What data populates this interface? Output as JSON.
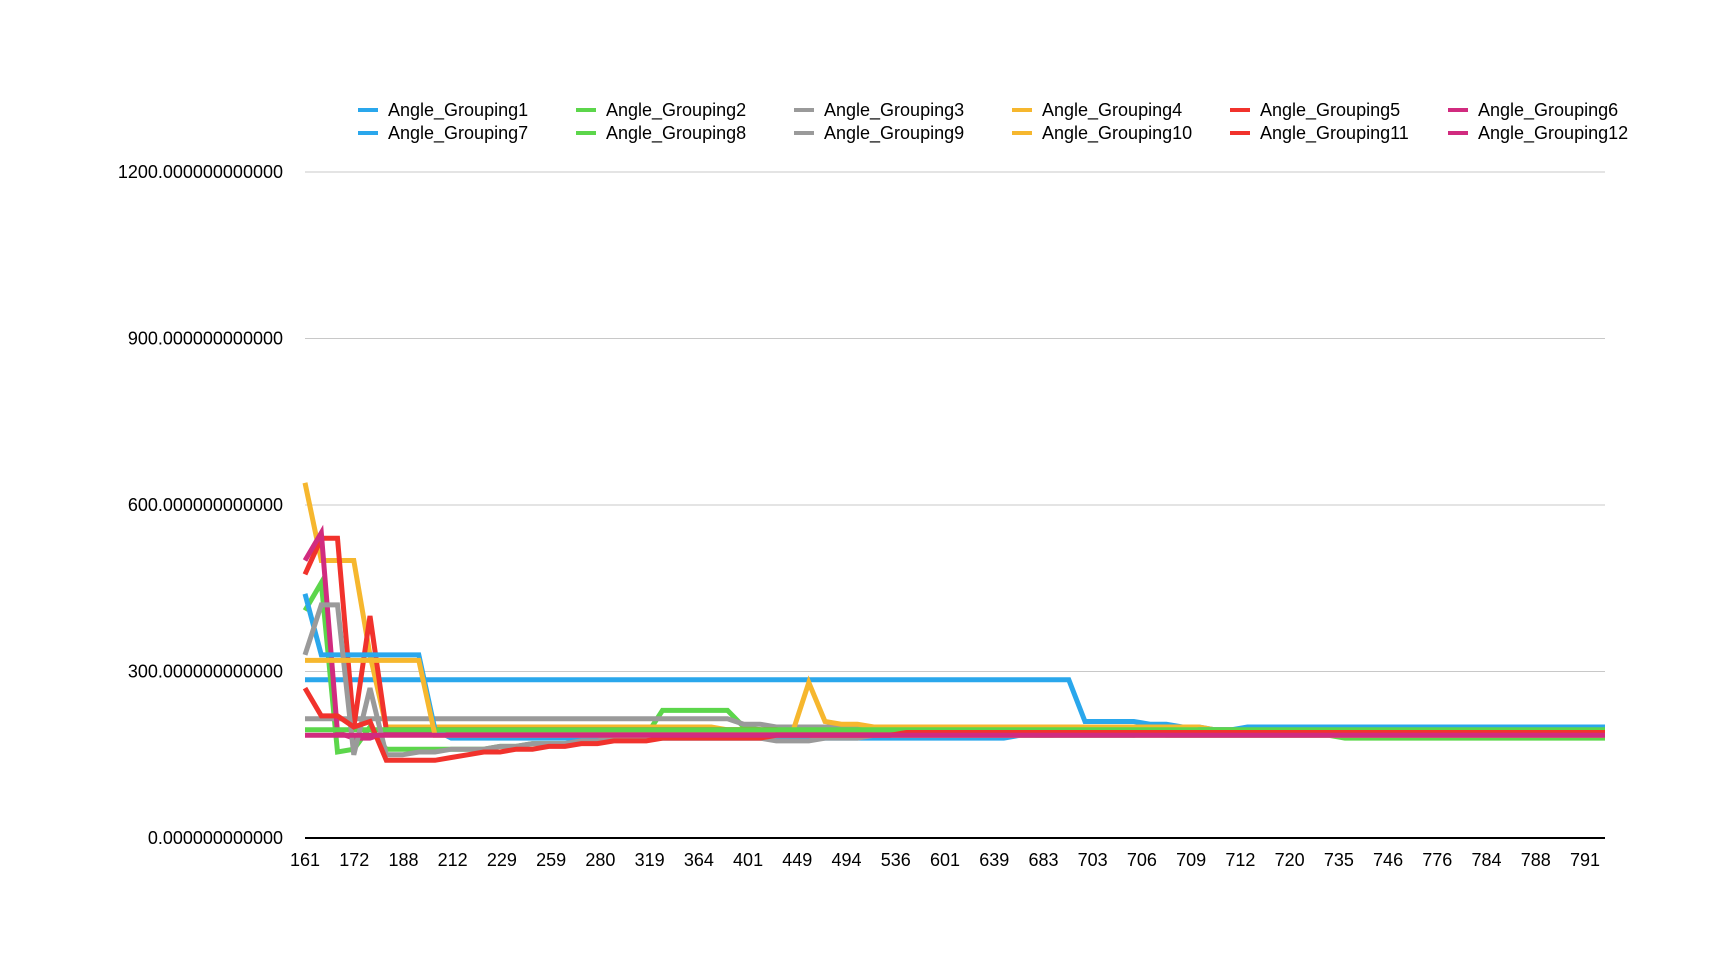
{
  "chart_data": {
    "type": "line",
    "title": "",
    "xlabel": "",
    "ylabel": "",
    "ylim": [
      0,
      1200
    ],
    "y_ticks": [
      0,
      300,
      600,
      900,
      1200
    ],
    "y_tick_labels": [
      "0.000000000000",
      "300.000000000000",
      "600.000000000000",
      "900.000000000000",
      "1200.000000000000"
    ],
    "grid": true,
    "legend": "top",
    "x_tick_labels": [
      "161",
      "172",
      "188",
      "212",
      "229",
      "259",
      "280",
      "319",
      "364",
      "401",
      "449",
      "494",
      "536",
      "601",
      "639",
      "683",
      "703",
      "706",
      "709",
      "712",
      "720",
      "735",
      "746",
      "776",
      "784",
      "788",
      "791"
    ],
    "n_points": 81,
    "series": [
      {
        "name": "Angle_Grouping1",
        "color": "#2aa7ec",
        "values": [
          285,
          285,
          285,
          285,
          285,
          285,
          285,
          285,
          285,
          285,
          285,
          285,
          285,
          285,
          285,
          285,
          285,
          285,
          285,
          285,
          285,
          285,
          285,
          285,
          285,
          285,
          285,
          285,
          285,
          285,
          285,
          285,
          285,
          285,
          285,
          285,
          285,
          285,
          285,
          285,
          285,
          285,
          285,
          285,
          285,
          285,
          285,
          285,
          210,
          210,
          210,
          210,
          205,
          205,
          200,
          200,
          195,
          195,
          195,
          190,
          190,
          190,
          190,
          190,
          190,
          190,
          190,
          190,
          185,
          185,
          185,
          185,
          185,
          185,
          185,
          185,
          185,
          185,
          185,
          185,
          185
        ]
      },
      {
        "name": "Angle_Grouping2",
        "color": "#5cd64b",
        "values": [
          410,
          460,
          155,
          160,
          200,
          160,
          160,
          160,
          160,
          160,
          160,
          160,
          165,
          165,
          170,
          170,
          170,
          175,
          175,
          180,
          180,
          185,
          230,
          230,
          230,
          230,
          230,
          200,
          195,
          190,
          190,
          190,
          190,
          190,
          190,
          190,
          190,
          190,
          185,
          190,
          190,
          190,
          190,
          185,
          190,
          185,
          185,
          190,
          190,
          190,
          190,
          185,
          190,
          185,
          185,
          185,
          185,
          185,
          185,
          185,
          185,
          185,
          185,
          185,
          180,
          180,
          180,
          180,
          180,
          180,
          180,
          180,
          180,
          180,
          180,
          180,
          180,
          180,
          180,
          180,
          180
        ]
      },
      {
        "name": "Angle_Grouping3",
        "color": "#9a9a9a",
        "values": [
          215,
          215,
          215,
          215,
          215,
          215,
          215,
          215,
          215,
          215,
          215,
          215,
          215,
          215,
          215,
          215,
          215,
          215,
          215,
          215,
          215,
          215,
          215,
          215,
          215,
          215,
          215,
          205,
          205,
          200,
          200,
          200,
          200,
          200,
          200,
          200,
          200,
          200,
          200,
          200,
          200,
          200,
          200,
          200,
          200,
          200,
          200,
          200,
          200,
          200,
          200,
          200,
          200,
          195,
          195,
          195,
          195,
          195,
          195,
          195,
          195,
          195,
          195,
          195,
          190,
          190,
          190,
          190,
          190,
          190,
          190,
          190,
          190,
          190,
          190,
          190,
          190,
          190,
          190,
          190,
          190
        ]
      },
      {
        "name": "Angle_Grouping4",
        "color": "#f6b72e",
        "values": [
          640,
          500,
          500,
          500,
          330,
          200,
          200,
          200,
          200,
          200,
          200,
          200,
          200,
          200,
          200,
          200,
          200,
          200,
          200,
          200,
          200,
          200,
          200,
          200,
          200,
          200,
          195,
          195,
          195,
          190,
          190,
          280,
          210,
          205,
          205,
          200,
          200,
          200,
          200,
          200,
          200,
          200,
          200,
          200,
          200,
          200,
          200,
          200,
          200,
          200,
          200,
          200,
          200,
          200,
          200,
          200,
          195,
          195,
          195,
          195,
          195,
          195,
          190,
          190,
          190,
          190,
          190,
          190,
          190,
          190,
          190,
          190,
          190,
          190,
          190,
          190,
          190,
          190,
          190,
          190,
          190
        ]
      },
      {
        "name": "Angle_Grouping5",
        "color": "#f1322c",
        "values": [
          475,
          540,
          540,
          200,
          400,
          195,
          195,
          195,
          195,
          195,
          195,
          195,
          195,
          195,
          195,
          195,
          195,
          195,
          195,
          195,
          195,
          195,
          195,
          195,
          195,
          195,
          195,
          195,
          195,
          195,
          190,
          190,
          190,
          190,
          190,
          190,
          190,
          190,
          190,
          190,
          190,
          190,
          190,
          190,
          190,
          190,
          190,
          190,
          190,
          190,
          190,
          190,
          190,
          190,
          190,
          190,
          190,
          190,
          190,
          190,
          190,
          190,
          190,
          190,
          190,
          190,
          190,
          190,
          190,
          190,
          190,
          190,
          190,
          190,
          190,
          190,
          190,
          190,
          190,
          190,
          190
        ]
      },
      {
        "name": "Angle_Grouping6",
        "color": "#d12b7f",
        "values": [
          500,
          550,
          190,
          180,
          180,
          190,
          190,
          190,
          190,
          190,
          190,
          190,
          190,
          190,
          190,
          190,
          190,
          190,
          190,
          190,
          190,
          190,
          190,
          190,
          190,
          190,
          190,
          190,
          190,
          190,
          190,
          190,
          190,
          190,
          190,
          190,
          190,
          190,
          190,
          190,
          190,
          190,
          190,
          190,
          190,
          190,
          190,
          190,
          190,
          190,
          190,
          190,
          190,
          190,
          190,
          190,
          190,
          190,
          190,
          190,
          190,
          190,
          190,
          190,
          190,
          190,
          190,
          190,
          190,
          190,
          190,
          190,
          190,
          190,
          190,
          190,
          190,
          190,
          190,
          190,
          190
        ]
      },
      {
        "name": "Angle_Grouping7",
        "color": "#2aa7ec",
        "values": [
          440,
          330,
          330,
          330,
          330,
          330,
          330,
          330,
          195,
          180,
          180,
          180,
          180,
          180,
          180,
          180,
          180,
          180,
          180,
          180,
          180,
          180,
          180,
          180,
          180,
          180,
          180,
          180,
          180,
          180,
          180,
          180,
          180,
          180,
          180,
          180,
          180,
          180,
          180,
          180,
          180,
          180,
          180,
          180,
          185,
          185,
          185,
          185,
          185,
          185,
          185,
          185,
          190,
          190,
          190,
          195,
          195,
          195,
          200,
          200,
          200,
          200,
          200,
          200,
          200,
          200,
          200,
          200,
          200,
          200,
          200,
          200,
          200,
          200,
          200,
          200,
          200,
          200,
          200,
          200,
          200
        ]
      },
      {
        "name": "Angle_Grouping8",
        "color": "#5cd64b",
        "values": [
          195,
          195,
          195,
          195,
          195,
          195,
          195,
          195,
          195,
          195,
          195,
          195,
          195,
          195,
          195,
          195,
          195,
          195,
          195,
          195,
          195,
          195,
          195,
          195,
          195,
          195,
          195,
          195,
          195,
          195,
          195,
          195,
          195,
          195,
          195,
          195,
          195,
          195,
          195,
          195,
          195,
          195,
          195,
          195,
          195,
          195,
          195,
          195,
          195,
          195,
          195,
          195,
          195,
          195,
          195,
          195,
          195,
          195,
          195,
          195,
          195,
          195,
          195,
          195,
          195,
          195,
          195,
          195,
          195,
          195,
          195,
          195,
          195,
          195,
          195,
          195,
          195,
          195,
          195,
          195,
          195
        ]
      },
      {
        "name": "Angle_Grouping9",
        "color": "#9a9a9a",
        "values": [
          330,
          420,
          420,
          150,
          270,
          150,
          150,
          155,
          155,
          160,
          160,
          160,
          165,
          165,
          170,
          170,
          170,
          175,
          175,
          180,
          180,
          180,
          180,
          180,
          180,
          180,
          180,
          180,
          180,
          175,
          175,
          175,
          180,
          180,
          180,
          185,
          185,
          185,
          185,
          185,
          185,
          185,
          185,
          185,
          185,
          185,
          185,
          185,
          185,
          185,
          185,
          185,
          185,
          185,
          185,
          185,
          185,
          185,
          185,
          185,
          185,
          185,
          185,
          185,
          185,
          185,
          185,
          185,
          185,
          185,
          185,
          185,
          185,
          185,
          185,
          185,
          185,
          185,
          185,
          185,
          185
        ]
      },
      {
        "name": "Angle_Grouping10",
        "color": "#f6b72e",
        "values": [
          320,
          320,
          320,
          320,
          320,
          320,
          320,
          320,
          185,
          185,
          185,
          185,
          185,
          185,
          185,
          185,
          185,
          185,
          185,
          185,
          185,
          185,
          185,
          185,
          185,
          185,
          185,
          185,
          185,
          185,
          185,
          185,
          185,
          185,
          185,
          185,
          185,
          185,
          185,
          185,
          185,
          185,
          185,
          185,
          185,
          185,
          185,
          185,
          185,
          185,
          185,
          185,
          185,
          185,
          185,
          185,
          185,
          185,
          185,
          185,
          185,
          185,
          185,
          185,
          185,
          185,
          185,
          185,
          185,
          185,
          185,
          185,
          185,
          185,
          185,
          185,
          185,
          185,
          185,
          185,
          185
        ]
      },
      {
        "name": "Angle_Grouping11",
        "color": "#f1322c",
        "values": [
          270,
          220,
          220,
          200,
          210,
          140,
          140,
          140,
          140,
          145,
          150,
          155,
          155,
          160,
          160,
          165,
          165,
          170,
          170,
          175,
          175,
          175,
          180,
          180,
          180,
          180,
          180,
          180,
          180,
          185,
          185,
          185,
          185,
          185,
          185,
          185,
          185,
          190,
          190,
          190,
          190,
          190,
          190,
          190,
          190,
          190,
          190,
          190,
          190,
          190,
          190,
          190,
          190,
          190,
          190,
          190,
          190,
          190,
          190,
          190,
          190,
          190,
          190,
          190,
          190,
          190,
          190,
          190,
          190,
          190,
          190,
          190,
          190,
          190,
          190,
          190,
          190,
          190,
          190,
          190,
          190
        ]
      },
      {
        "name": "Angle_Grouping12",
        "color": "#d12b7f",
        "values": [
          185,
          185,
          185,
          185,
          185,
          185,
          185,
          185,
          185,
          185,
          185,
          185,
          185,
          185,
          185,
          185,
          185,
          185,
          185,
          185,
          185,
          185,
          185,
          185,
          185,
          185,
          185,
          185,
          185,
          185,
          185,
          185,
          185,
          185,
          185,
          185,
          185,
          185,
          185,
          185,
          185,
          185,
          185,
          185,
          185,
          185,
          185,
          185,
          185,
          185,
          185,
          185,
          185,
          185,
          185,
          185,
          185,
          185,
          185,
          185,
          185,
          185,
          185,
          185,
          185,
          185,
          185,
          185,
          185,
          185,
          185,
          185,
          185,
          185,
          185,
          185,
          185,
          185,
          185,
          185,
          185
        ]
      }
    ]
  }
}
